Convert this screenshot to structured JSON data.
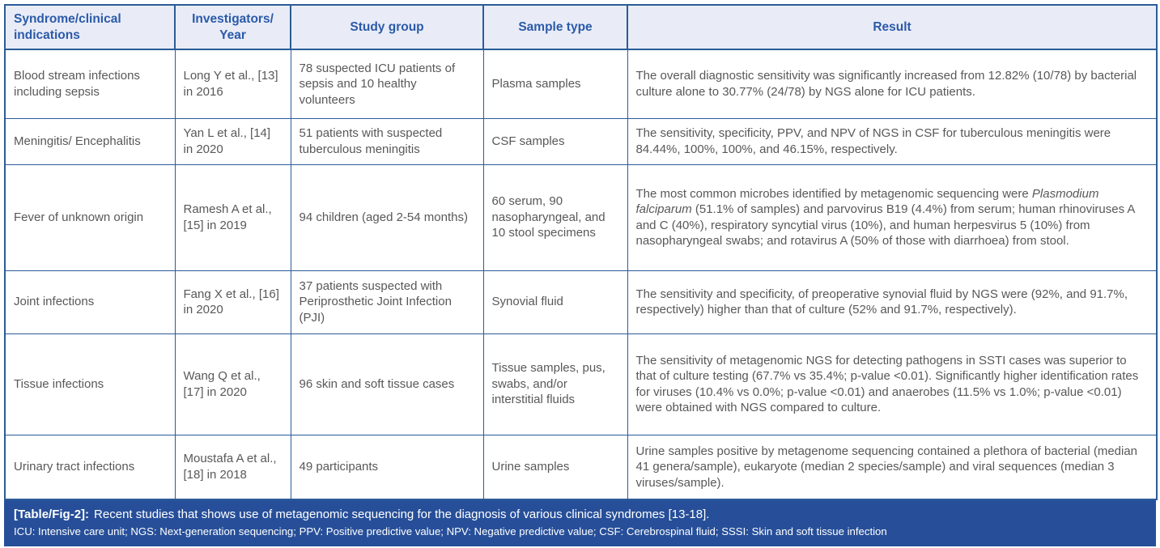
{
  "colors": {
    "table_border": "#2b5c97",
    "header_background": "#e9ecf7",
    "header_text": "#2b5aa9",
    "body_text": "#58585a",
    "caption_background": "#274f99",
    "caption_text": "#ffffff"
  },
  "table": {
    "columns": [
      {
        "label": "Syndrome/clinical indications"
      },
      {
        "label": "Investigators/ Year"
      },
      {
        "label": "Study group"
      },
      {
        "label": "Sample type"
      },
      {
        "label": "Result"
      }
    ],
    "rows": [
      {
        "syndrome": "Blood stream infections including sepsis",
        "investigators": "Long Y et al., [13] in 2016",
        "study_group": "78 suspected ICU patients of sepsis and 10 healthy volunteers",
        "sample_type": "Plasma samples",
        "result": [
          {
            "text": "The overall diagnostic sensitivity was significantly increased from 12.82% (10/78) by bacterial culture alone to 30.77% (24/78) by NGS alone for ICU patients."
          }
        ]
      },
      {
        "syndrome": "Meningitis/ Encephalitis",
        "investigators": "Yan L et al., [14] in 2020",
        "study_group": "51 patients with suspected tuberculous meningitis",
        "sample_type": "CSF samples",
        "result": [
          {
            "text": "The sensitivity, specificity, PPV, and NPV of NGS in CSF for tuberculous meningitis were 84.44%, 100%, 100%, and 46.15%, respectively."
          }
        ]
      },
      {
        "syndrome": "Fever of unknown origin",
        "investigators": "Ramesh A et al., [15] in 2019",
        "study_group": "94 children (aged 2-54 months)",
        "sample_type": "60 serum, 90 nasopharyngeal, and 10 stool specimens",
        "result": [
          {
            "text": "The most common microbes identified by metagenomic sequencing were "
          },
          {
            "text": "Plasmodium falciparum",
            "italic": true
          },
          {
            "text": " (51.1% of samples) and parvovirus B19 (4.4%) from serum; human rhinoviruses A and C (40%), respiratory syncytial virus (10%), and human herpesvirus 5 (10%) from nasopharyngeal swabs; and rotavirus A (50% of those with diarrhoea) from stool."
          }
        ]
      },
      {
        "syndrome": "Joint infections",
        "investigators": "Fang X et al., [16] in 2020",
        "study_group": "37 patients suspected with Periprosthetic Joint Infection (PJI)",
        "sample_type": "Synovial fluid",
        "result": [
          {
            "text": "The sensitivity and specificity, of preoperative synovial fluid by NGS were (92%, and 91.7%, respectively) higher than that of culture (52% and 91.7%, respectively)."
          }
        ]
      },
      {
        "syndrome": "Tissue infections",
        "investigators": "Wang Q et al., [17] in 2020",
        "study_group": "96 skin and soft tissue cases",
        "sample_type": "Tissue samples, pus, swabs, and/or interstitial fluids",
        "result": [
          {
            "text": "The sensitivity of metagenomic NGS for detecting pathogens in SSTI cases was superior to that of culture testing (67.7% vs 35.4%; p-value <0.01). Significantly higher identification rates for viruses (10.4% vs 0.0%; p-value <0.01) and anaerobes (11.5% vs 1.0%; p-value <0.01) were obtained with NGS compared to culture."
          }
        ]
      },
      {
        "syndrome": "Urinary tract infections",
        "investigators": "Moustafa A et al., [18] in 2018",
        "study_group": "49 participants",
        "sample_type": "Urine samples",
        "result": [
          {
            "text": "Urine samples positive by metagenome sequencing contained a plethora of bacterial (median 41 genera/sample), eukaryote (median 2 species/sample) and viral sequences (median 3 viruses/sample)."
          }
        ]
      }
    ]
  },
  "caption": {
    "label": "[Table/Fig-2]:",
    "text": "Recent studies that shows use of metagenomic sequencing for the diagnosis of various clinical syndromes [13-18].",
    "abbreviations": "ICU: Intensive care unit; NGS: Next-generation sequencing; PPV: Positive predictive value; NPV: Negative predictive value; CSF: Cerebrospinal fluid; SSSI: Skin and soft tissue infection"
  }
}
